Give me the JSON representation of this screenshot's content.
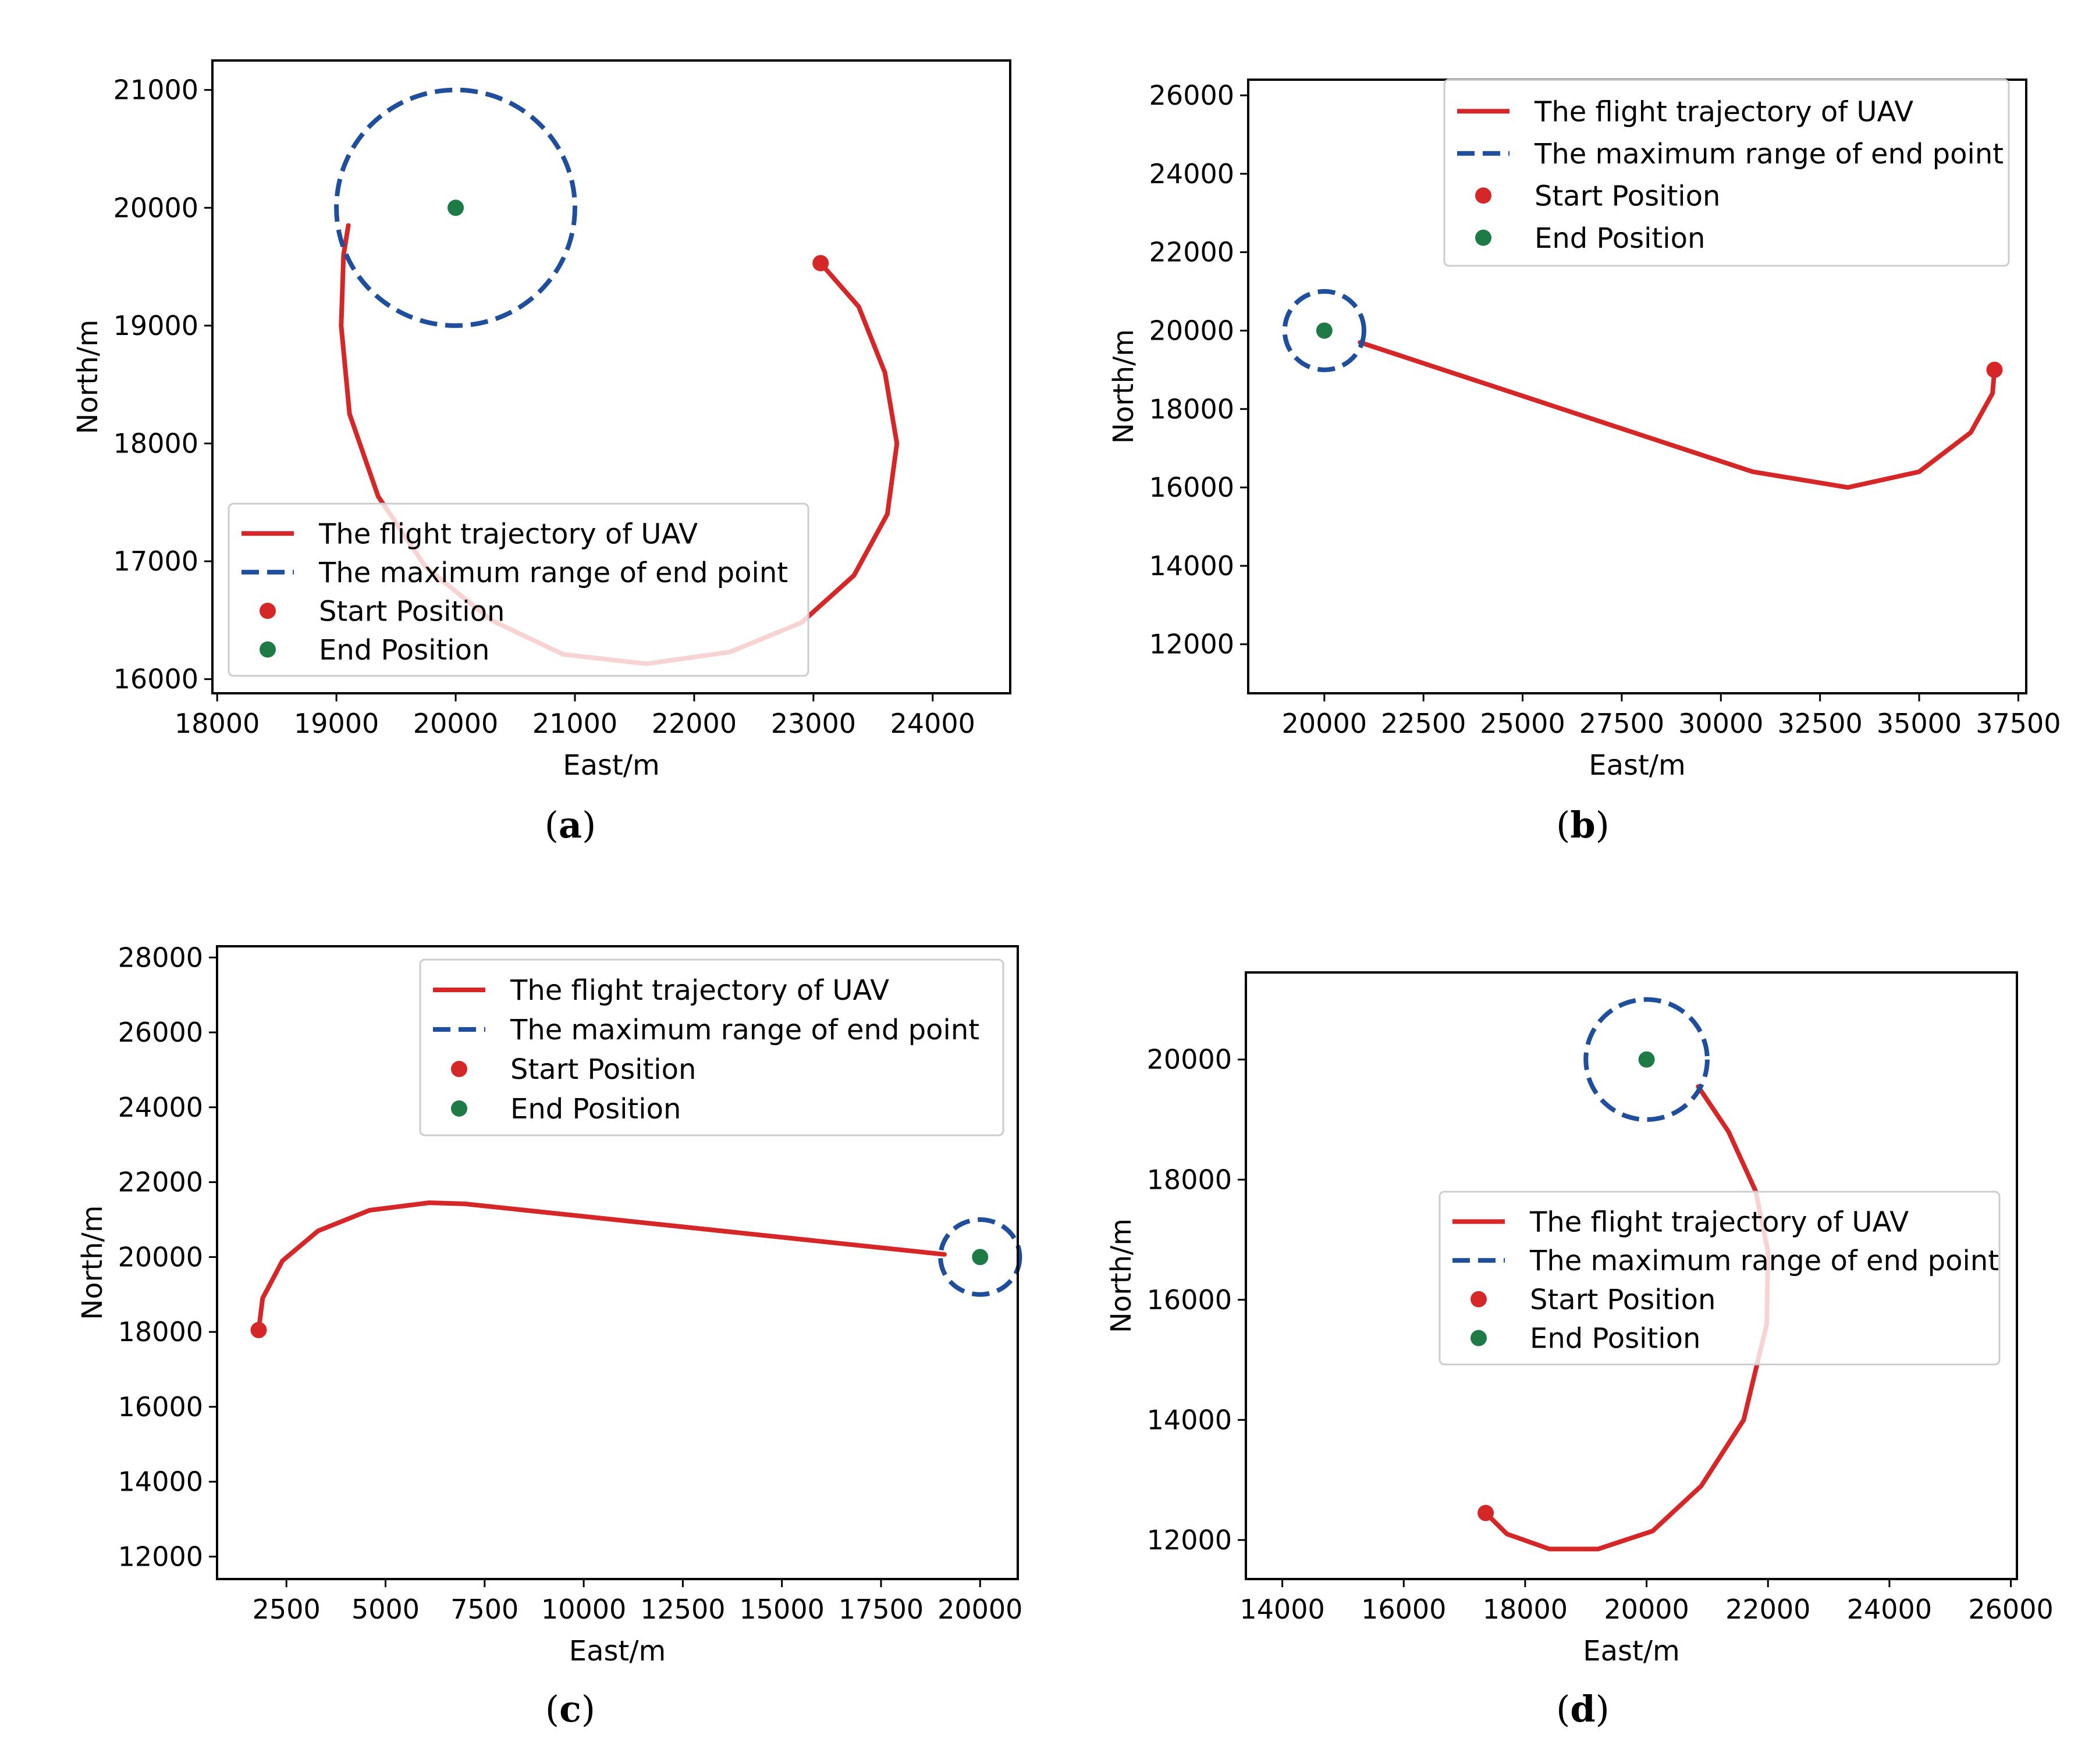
{
  "colors": {
    "trajectory": "#d62728",
    "range_circle": "#1f4e9c",
    "start": "#d62728",
    "end": "#1e7b46",
    "legend_border": "#cccccc"
  },
  "chart_data": [
    {
      "id": "a",
      "type": "line",
      "caption": {
        "open": "(",
        "letter": "a",
        "close": ")"
      },
      "xlabel": "East/m",
      "ylabel": "North/m",
      "xlim": [
        17960,
        24650
      ],
      "ylim": [
        15880,
        21250
      ],
      "xticks": [
        18000,
        19000,
        20000,
        21000,
        22000,
        23000,
        24000
      ],
      "yticks": [
        16000,
        17000,
        18000,
        19000,
        20000,
        21000
      ],
      "legend_position": "lower-left",
      "legend": [
        "The flight trajectory of UAV",
        "The maximum range of end point",
        "Start Position",
        "End Position"
      ],
      "circle": {
        "center": [
          20000,
          20000
        ],
        "radius": 1000
      },
      "start": [
        23060,
        19530
      ],
      "end": [
        20000,
        20000
      ],
      "trajectory": [
        [
          23060,
          19530
        ],
        [
          23380,
          19160
        ],
        [
          23600,
          18600
        ],
        [
          23700,
          18000
        ],
        [
          23620,
          17400
        ],
        [
          23340,
          16880
        ],
        [
          22900,
          16480
        ],
        [
          22300,
          16230
        ],
        [
          21600,
          16130
        ],
        [
          20900,
          16210
        ],
        [
          20300,
          16500
        ],
        [
          19750,
          16950
        ],
        [
          19350,
          17550
        ],
        [
          19110,
          18250
        ],
        [
          19040,
          19000
        ],
        [
          19060,
          19600
        ],
        [
          19100,
          19850
        ]
      ]
    },
    {
      "id": "b",
      "type": "line",
      "caption": {
        "open": "(",
        "letter": "b",
        "close": ")"
      },
      "xlabel": "East/m",
      "ylabel": "North/m",
      "xlim": [
        18080,
        37700
      ],
      "ylim": [
        10750,
        26400
      ],
      "xticks": [
        20000,
        22500,
        25000,
        27500,
        30000,
        32500,
        35000,
        37500
      ],
      "yticks": [
        12000,
        14000,
        16000,
        18000,
        20000,
        22000,
        24000,
        26000
      ],
      "legend_position": "top-right",
      "legend": [
        "The flight trajectory of UAV",
        "The maximum range of end point",
        "Start Position",
        "End Position"
      ],
      "circle": {
        "center": [
          20000,
          20000
        ],
        "radius": 1000
      },
      "start": [
        36900,
        19000
      ],
      "end": [
        20000,
        20000
      ],
      "trajectory": [
        [
          20900,
          19700
        ],
        [
          30800,
          16400
        ],
        [
          33200,
          16000
        ],
        [
          35000,
          16400
        ],
        [
          36300,
          17400
        ],
        [
          36850,
          18400
        ],
        [
          36900,
          19000
        ]
      ]
    },
    {
      "id": "c",
      "type": "line",
      "caption": {
        "open": "(",
        "letter": "c",
        "close": ")"
      },
      "xlabel": "East/m",
      "ylabel": "North/m",
      "xlim": [
        750,
        20950
      ],
      "ylim": [
        11400,
        28300
      ],
      "xticks": [
        2500,
        5000,
        7500,
        10000,
        12500,
        15000,
        17500,
        20000
      ],
      "yticks": [
        12000,
        14000,
        16000,
        18000,
        20000,
        22000,
        24000,
        26000,
        28000
      ],
      "legend_position": "top-right",
      "legend": [
        "The flight trajectory of UAV",
        "The maximum range of end point",
        "Start Position",
        "End Position"
      ],
      "circle": {
        "center": [
          20000,
          20000
        ],
        "radius": 1000
      },
      "start": [
        1800,
        18050
      ],
      "end": [
        20000,
        20000
      ],
      "trajectory": [
        [
          1800,
          18050
        ],
        [
          1900,
          18900
        ],
        [
          2400,
          19900
        ],
        [
          3300,
          20700
        ],
        [
          4600,
          21250
        ],
        [
          6100,
          21450
        ],
        [
          7000,
          21420
        ],
        [
          19100,
          20070
        ]
      ]
    },
    {
      "id": "d",
      "type": "line",
      "caption": {
        "open": "(",
        "letter": "d",
        "close": ")"
      },
      "xlabel": "East/m",
      "ylabel": "North/m",
      "xlim": [
        13400,
        26100
      ],
      "ylim": [
        11350,
        21450
      ],
      "xticks": [
        14000,
        16000,
        18000,
        20000,
        22000,
        24000,
        26000
      ],
      "yticks": [
        12000,
        14000,
        16000,
        18000,
        20000
      ],
      "legend_position": "center-right",
      "legend": [
        "The flight trajectory of UAV",
        "The maximum range of end point",
        "Start Position",
        "End Position"
      ],
      "circle": {
        "center": [
          20000,
          20000
        ],
        "radius": 1000
      },
      "start": [
        17350,
        12450
      ],
      "end": [
        20000,
        20000
      ],
      "trajectory": [
        [
          17350,
          12450
        ],
        [
          17700,
          12100
        ],
        [
          18400,
          11850
        ],
        [
          19200,
          11850
        ],
        [
          20100,
          12150
        ],
        [
          20900,
          12900
        ],
        [
          21600,
          14000
        ],
        [
          21980,
          15600
        ],
        [
          22000,
          16800
        ],
        [
          21800,
          17800
        ],
        [
          21350,
          18800
        ],
        [
          20850,
          19550
        ]
      ]
    }
  ]
}
